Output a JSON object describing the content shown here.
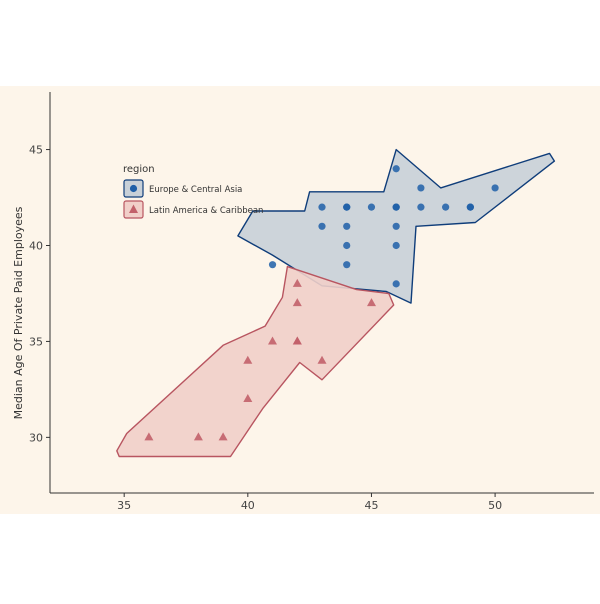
{
  "chart_data": {
    "type": "scatter",
    "title": "",
    "xlabel": "",
    "ylabel": "Median Age Of Private Paid Employees",
    "xlim": [
      32,
      54
    ],
    "ylim": [
      27.1,
      48.0
    ],
    "x_ticks": [
      35,
      40,
      45,
      50
    ],
    "y_ticks": [
      30,
      35,
      40,
      45
    ],
    "grid": false,
    "legend_title": "region",
    "legend_position": "top-left",
    "colors": {
      "panel_background": "#fdf5ea",
      "axis": "#333333",
      "tick_text": "#444444"
    },
    "series": [
      {
        "name": "Europe & Central Asia",
        "marker": "circle",
        "color": "#1f5fa8",
        "hull_fill": "#c8d0d8",
        "hull_stroke": "#0f3d7a",
        "points": [
          [
            41,
            39
          ],
          [
            43,
            42
          ],
          [
            43,
            41
          ],
          [
            44,
            42
          ],
          [
            44,
            42
          ],
          [
            44,
            41
          ],
          [
            44,
            40
          ],
          [
            44,
            39
          ],
          [
            45,
            42
          ],
          [
            46,
            44
          ],
          [
            46,
            42
          ],
          [
            46,
            42
          ],
          [
            46,
            41
          ],
          [
            46,
            40
          ],
          [
            46,
            38
          ],
          [
            47,
            43
          ],
          [
            47,
            42
          ],
          [
            48,
            42
          ],
          [
            49,
            42
          ],
          [
            49,
            42
          ],
          [
            50,
            43
          ]
        ],
        "hull": [
          [
            41,
            39.5
          ],
          [
            39.6,
            40.5
          ],
          [
            40.2,
            41.8
          ],
          [
            42.3,
            41.8
          ],
          [
            42.5,
            42.8
          ],
          [
            45.5,
            42.8
          ],
          [
            46.0,
            45.0
          ],
          [
            47.8,
            43.0
          ],
          [
            52.2,
            44.8
          ],
          [
            52.4,
            44.4
          ],
          [
            49.2,
            41.2
          ],
          [
            46.8,
            41.0
          ],
          [
            46.6,
            37.0
          ],
          [
            45.6,
            37.6
          ],
          [
            43.0,
            37.9
          ]
        ]
      },
      {
        "name": "Latin America & Caribbean",
        "marker": "triangle",
        "color": "#c2606a",
        "hull_fill": "#f1cfc9",
        "hull_stroke": "#b85560",
        "points": [
          [
            36,
            30
          ],
          [
            38,
            30
          ],
          [
            39,
            30
          ],
          [
            40,
            34
          ],
          [
            40,
            32
          ],
          [
            41,
            35
          ],
          [
            42,
            38
          ],
          [
            42,
            37
          ],
          [
            42,
            35
          ],
          [
            42,
            35
          ],
          [
            43,
            34
          ],
          [
            45,
            37
          ]
        ],
        "hull": [
          [
            34.8,
            29.0
          ],
          [
            39.3,
            29.0
          ],
          [
            40.6,
            31.5
          ],
          [
            42.1,
            33.9
          ],
          [
            43.0,
            33.0
          ],
          [
            45.9,
            36.9
          ],
          [
            45.7,
            37.5
          ],
          [
            44.4,
            37.7
          ],
          [
            41.6,
            38.9
          ],
          [
            41.4,
            37.3
          ],
          [
            40.7,
            35.8
          ],
          [
            39.0,
            34.8
          ],
          [
            35.1,
            30.2
          ],
          [
            34.7,
            29.3
          ]
        ]
      }
    ]
  }
}
